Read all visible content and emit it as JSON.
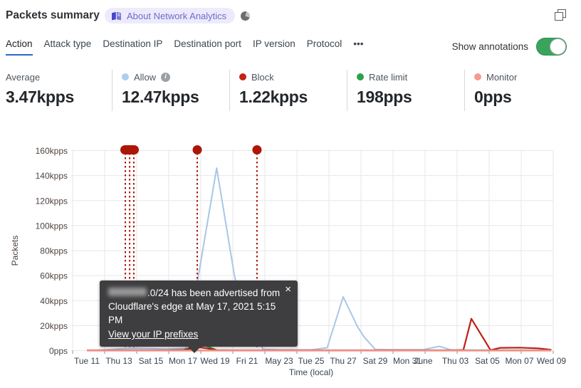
{
  "header": {
    "title": "Packets summary",
    "badge": {
      "icon": "book-icon",
      "label": "About Network Analytics"
    }
  },
  "tabs": {
    "items": [
      {
        "label": "Action",
        "active": true
      },
      {
        "label": "Attack type"
      },
      {
        "label": "Destination IP"
      },
      {
        "label": "Destination port"
      },
      {
        "label": "IP version"
      },
      {
        "label": "Protocol"
      },
      {
        "label": "•••",
        "more": true
      }
    ]
  },
  "toggle": {
    "label": "Show annotations",
    "on": true
  },
  "stats": [
    {
      "label": "Average",
      "value": "3.47kpps"
    },
    {
      "label": "Allow",
      "value": "12.47kpps",
      "dot": "#aecdf0",
      "info": true
    },
    {
      "label": "Block",
      "value": "1.22kpps",
      "dot": "#c42313"
    },
    {
      "label": "Rate limit",
      "value": "198pps",
      "dot": "#2ba24c"
    },
    {
      "label": "Monitor",
      "value": "0pps",
      "dot": "#f59a93"
    }
  ],
  "tooltip": {
    "redacted_prefix": true,
    "message_suffix": ".0/24 has been advertised from",
    "line2": "Cloudflare's edge at May 17, 2021 5:15 PM",
    "link": "View your IP prefixes",
    "close": "×"
  },
  "chart_data": {
    "type": "line",
    "title": "Packets summary",
    "xlabel": "Time (local)",
    "ylabel": "Packets",
    "ylim": [
      0,
      160
    ],
    "grid": true,
    "yticks": [
      {
        "label": "0pps",
        "value": 0
      },
      {
        "label": "20kpps",
        "value": 20
      },
      {
        "label": "40kpps",
        "value": 40
      },
      {
        "label": "60kpps",
        "value": 60
      },
      {
        "label": "80kpps",
        "value": 80
      },
      {
        "label": "100kpps",
        "value": 100
      },
      {
        "label": "120kpps",
        "value": 120
      },
      {
        "label": "140kpps",
        "value": 140
      },
      {
        "label": "160kpps",
        "value": 160
      }
    ],
    "xticks": [
      {
        "label": "Tue 11",
        "day": 11
      },
      {
        "label": "Thu 13",
        "day": 13
      },
      {
        "label": "Sat 15",
        "day": 15
      },
      {
        "label": "Mon 17",
        "day": 17
      },
      {
        "label": "Wed 19",
        "day": 19
      },
      {
        "label": "Fri 21",
        "day": 21
      },
      {
        "label": "May 23",
        "day": 23
      },
      {
        "label": "Tue 25",
        "day": 25
      },
      {
        "label": "Thu 27",
        "day": 27
      },
      {
        "label": "Sat 29",
        "day": 29
      },
      {
        "label": "Mon 31",
        "day": 31
      },
      {
        "label": "June",
        "day": 32
      },
      {
        "label": "Thu 03",
        "day": 34
      },
      {
        "label": "Sat 05",
        "day": 36
      },
      {
        "label": "Mon 07",
        "day": 38
      },
      {
        "label": "Wed 09",
        "day": 40
      }
    ],
    "series": [
      {
        "name": "Allow",
        "color": "#a9c6e6",
        "width": 2,
        "points": [
          [
            11,
            0.1
          ],
          [
            12,
            0.4
          ],
          [
            13,
            1.4
          ],
          [
            14,
            1.8
          ],
          [
            15,
            1.6
          ],
          [
            16,
            1.3
          ],
          [
            17,
            1.8
          ],
          [
            17.2,
            2.3
          ],
          [
            19.1,
            146
          ],
          [
            20.2,
            61
          ],
          [
            20.6,
            36
          ],
          [
            22,
            1
          ],
          [
            23,
            0.7
          ],
          [
            24,
            0.6
          ],
          [
            25,
            0.6
          ],
          [
            26,
            2.3
          ],
          [
            27,
            43
          ],
          [
            27.9,
            19
          ],
          [
            28.3,
            11
          ],
          [
            29,
            1
          ],
          [
            30,
            0.8
          ],
          [
            31,
            0.8
          ],
          [
            32,
            0.8
          ],
          [
            33,
            3.4
          ],
          [
            33.7,
            0.7
          ],
          [
            35,
            0.5
          ],
          [
            36,
            0.5
          ],
          [
            37,
            0.5
          ],
          [
            38,
            0.5
          ],
          [
            39,
            0.5
          ],
          [
            40,
            0.5
          ]
        ]
      },
      {
        "name": "Rate limit",
        "color": "#2f9c3f",
        "width": 2.5,
        "points": [
          [
            11,
            0.1
          ],
          [
            16,
            0.1
          ],
          [
            17,
            0.3
          ],
          [
            18.1,
            5.5
          ],
          [
            19.1,
            0.3
          ],
          [
            20,
            0.1
          ],
          [
            40,
            0.1
          ]
        ]
      },
      {
        "name": "Block",
        "color": "#bb2114",
        "width": 2.2,
        "points": [
          [
            11,
            0.3
          ],
          [
            16,
            0.3
          ],
          [
            17,
            0.5
          ],
          [
            18.1,
            2.6
          ],
          [
            19.1,
            0.4
          ],
          [
            20,
            0.3
          ],
          [
            34,
            0.3
          ],
          [
            34.5,
            0.5
          ],
          [
            35,
            25.5
          ],
          [
            36.2,
            0.4
          ],
          [
            36.8,
            2.2
          ],
          [
            38,
            2.4
          ],
          [
            39.2,
            1.8
          ],
          [
            40,
            0.6
          ]
        ]
      },
      {
        "name": "Monitor",
        "color": "#f2928b",
        "width": 2.5,
        "points": [
          [
            11,
            0.05
          ],
          [
            40,
            0.05
          ]
        ]
      }
    ],
    "annotations": {
      "color": "#a41708",
      "marker_fill": "#ad1507",
      "markers": [
        {
          "days": [
            13.4,
            13.67,
            13.93
          ],
          "pill": true
        },
        {
          "days": [
            17.89
          ]
        },
        {
          "days": [
            21.62
          ]
        }
      ]
    }
  }
}
